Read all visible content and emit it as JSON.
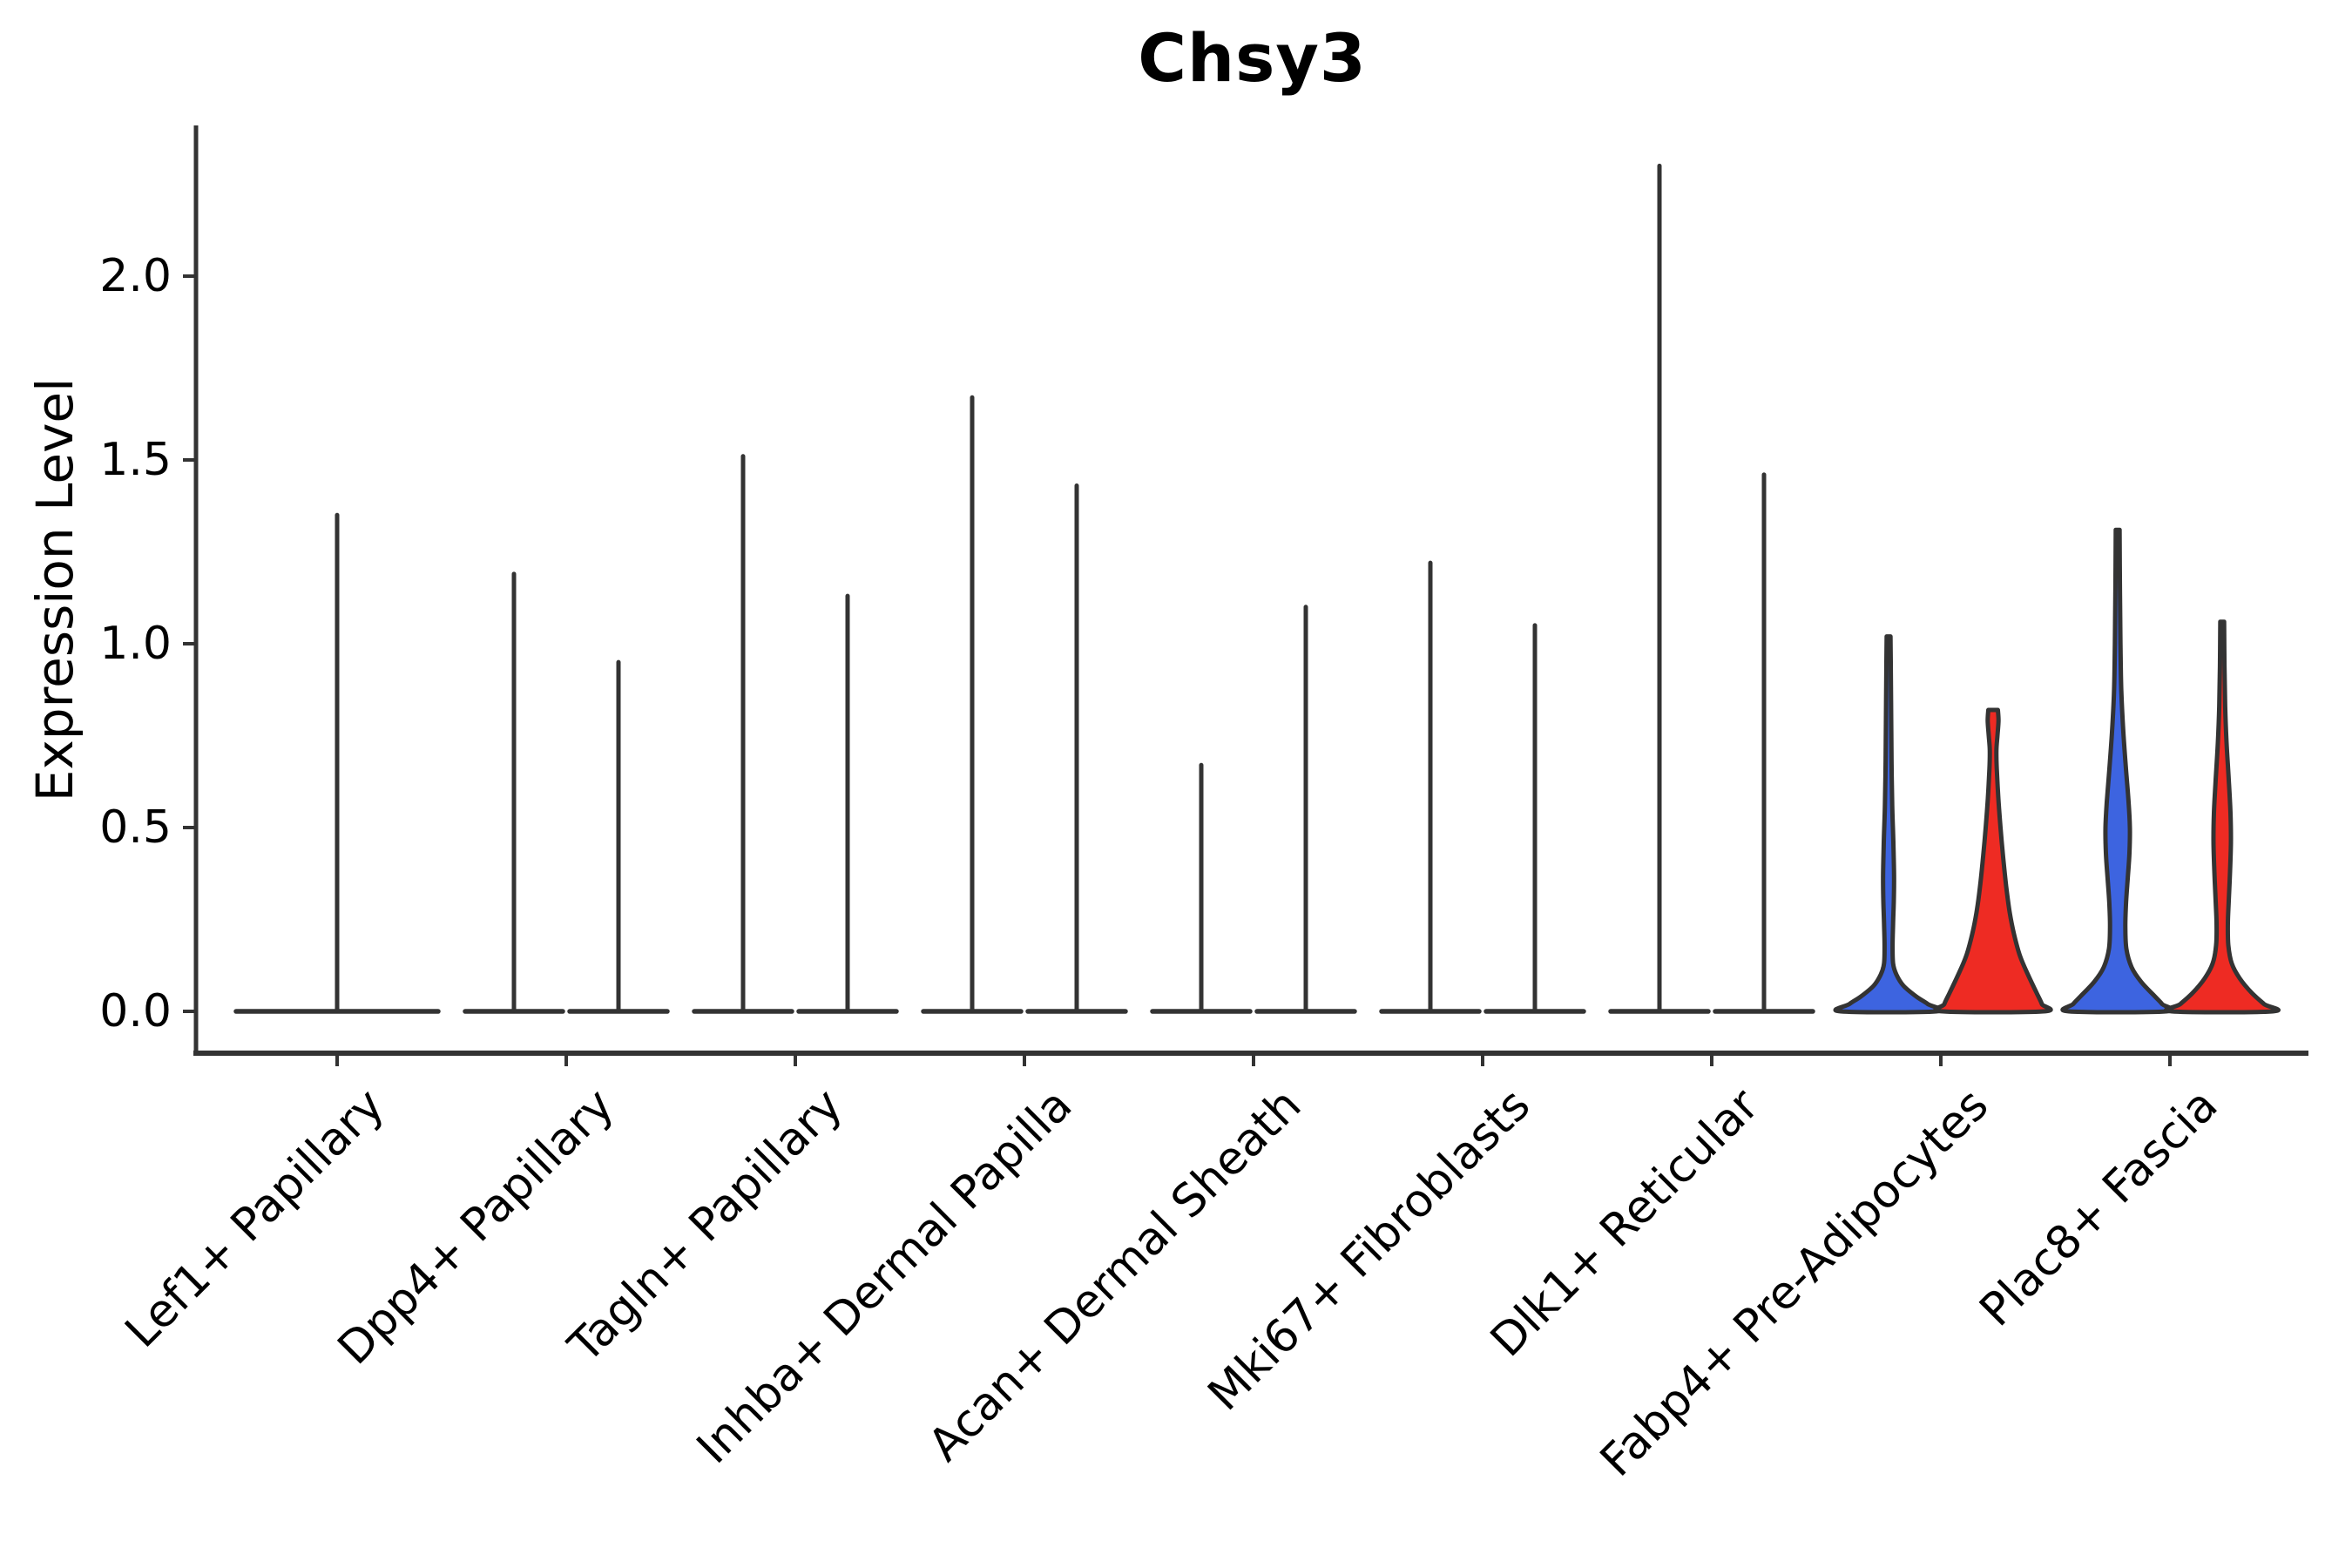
{
  "chart_data": {
    "type": "violin",
    "title": "Chsy3",
    "ylabel": "Expression Level",
    "yticks": [
      0.0,
      0.5,
      1.0,
      1.5,
      2.0
    ],
    "ytick_labels": [
      "0.0",
      "0.5",
      "1.0",
      "1.5",
      "2.0"
    ],
    "ylim": [
      -0.11,
      2.41
    ],
    "xtick_rotation_deg": 45,
    "grid": false,
    "legend": "none",
    "colors": {
      "blue": "#3D64E0",
      "red": "#EE2B23",
      "edge": "#333333"
    },
    "categories": [
      "Lef1+ Papillary",
      "Dpp4+ Papillary",
      "Tagln+ Papillary",
      "Inhba+ Dermal Papilla",
      "Acan+ Dermal Sheath",
      "Mki67+ Fibroblasts",
      "Dlk1+ Reticular",
      "Fabp4+ Pre-Adipocytes",
      "Plac8+ Fascia"
    ],
    "violins": [
      {
        "category": "Lef1+ Papillary",
        "split": false,
        "violins": [
          {
            "pos": "center",
            "max": 1.35,
            "shape": "spike",
            "fill": "#333333"
          }
        ]
      },
      {
        "category": "Dpp4+ Papillary",
        "split": true,
        "violins": [
          {
            "pos": "left",
            "max": 1.19,
            "shape": "spike",
            "fill": "#333333"
          },
          {
            "pos": "right",
            "max": 0.95,
            "shape": "spike",
            "fill": "#333333"
          }
        ]
      },
      {
        "category": "Tagln+ Papillary",
        "split": true,
        "violins": [
          {
            "pos": "left",
            "max": 1.51,
            "shape": "spike",
            "fill": "#333333"
          },
          {
            "pos": "right",
            "max": 1.13,
            "shape": "spike",
            "fill": "#333333"
          }
        ]
      },
      {
        "category": "Inhba+ Dermal Papilla",
        "split": true,
        "violins": [
          {
            "pos": "left",
            "max": 1.67,
            "shape": "spike",
            "fill": "#333333"
          },
          {
            "pos": "right",
            "max": 1.43,
            "shape": "spike",
            "fill": "#333333"
          }
        ]
      },
      {
        "category": "Acan+ Dermal Sheath",
        "split": true,
        "violins": [
          {
            "pos": "left",
            "max": 0.67,
            "shape": "spike",
            "fill": "#333333"
          },
          {
            "pos": "right",
            "max": 1.1,
            "shape": "spike",
            "fill": "#333333"
          }
        ]
      },
      {
        "category": "Mki67+ Fibroblasts",
        "split": true,
        "violins": [
          {
            "pos": "left",
            "max": 1.22,
            "shape": "spike",
            "fill": "#333333"
          },
          {
            "pos": "right",
            "max": 1.05,
            "shape": "spike",
            "fill": "#333333"
          }
        ]
      },
      {
        "category": "Dlk1+ Reticular",
        "split": true,
        "violins": [
          {
            "pos": "left",
            "max": 2.3,
            "shape": "spike",
            "fill": "#333333"
          },
          {
            "pos": "right",
            "max": 1.46,
            "shape": "spike",
            "fill": "#333333"
          }
        ]
      },
      {
        "category": "Fabp4+ Pre-Adipocytes",
        "split": true,
        "violins": [
          {
            "pos": "left",
            "max": 1.02,
            "shape": "density",
            "fill": "#3D64E0",
            "profile": [
              [
                1.02,
                2.2
              ],
              [
                0.92,
                2.6
              ],
              [
                0.8,
                3.0
              ],
              [
                0.68,
                3.4
              ],
              [
                0.56,
                4.2
              ],
              [
                0.46,
                5.5
              ],
              [
                0.37,
                6.3
              ],
              [
                0.3,
                6.0
              ],
              [
                0.24,
                5.2
              ],
              [
                0.18,
                4.6
              ],
              [
                0.13,
                5.2
              ],
              [
                0.1,
                9
              ],
              [
                0.07,
                17
              ],
              [
                0.04,
                32
              ],
              [
                0.02,
                45
              ],
              [
                0.0,
                55
              ]
            ]
          },
          {
            "pos": "right",
            "max": 0.82,
            "shape": "density",
            "fill": "#EE2B23",
            "profile": [
              [
                0.82,
                5.5
              ],
              [
                0.79,
                6.2
              ],
              [
                0.75,
                5.0
              ],
              [
                0.71,
                3.8
              ],
              [
                0.66,
                4.2
              ],
              [
                0.58,
                6.0
              ],
              [
                0.5,
                8.5
              ],
              [
                0.42,
                11.5
              ],
              [
                0.34,
                15
              ],
              [
                0.27,
                19
              ],
              [
                0.21,
                24
              ],
              [
                0.15,
                31
              ],
              [
                0.1,
                40
              ],
              [
                0.05,
                50
              ],
              [
                0.02,
                56
              ],
              [
                0.0,
                58
              ]
            ]
          }
        ]
      },
      {
        "category": "Plac8+ Fascia",
        "split": true,
        "violins": [
          {
            "pos": "left",
            "max": 1.31,
            "shape": "density",
            "fill": "#3D64E0",
            "profile": [
              [
                1.31,
                2.2
              ],
              [
                1.15,
                2.6
              ],
              [
                1.0,
                3.2
              ],
              [
                0.87,
                4.2
              ],
              [
                0.76,
                6.5
              ],
              [
                0.66,
                9.5
              ],
              [
                0.57,
                12.5
              ],
              [
                0.5,
                14
              ],
              [
                0.43,
                13.5
              ],
              [
                0.36,
                11.5
              ],
              [
                0.29,
                9.5
              ],
              [
                0.23,
                8.8
              ],
              [
                0.17,
                10
              ],
              [
                0.12,
                16
              ],
              [
                0.08,
                27
              ],
              [
                0.04,
                43
              ],
              [
                0.02,
                51
              ],
              [
                0.0,
                56
              ]
            ]
          },
          {
            "pos": "right",
            "max": 1.06,
            "shape": "density",
            "fill": "#EE2B23",
            "profile": [
              [
                1.06,
                2.2
              ],
              [
                0.94,
                2.6
              ],
              [
                0.83,
                3.4
              ],
              [
                0.73,
                5.0
              ],
              [
                0.63,
                7.5
              ],
              [
                0.54,
                9.5
              ],
              [
                0.46,
                10
              ],
              [
                0.38,
                9
              ],
              [
                0.3,
                7.5
              ],
              [
                0.24,
                6.5
              ],
              [
                0.18,
                7.0
              ],
              [
                0.13,
                11
              ],
              [
                0.09,
                20
              ],
              [
                0.05,
                34
              ],
              [
                0.02,
                48
              ],
              [
                0.0,
                58
              ]
            ]
          }
        ]
      }
    ]
  }
}
